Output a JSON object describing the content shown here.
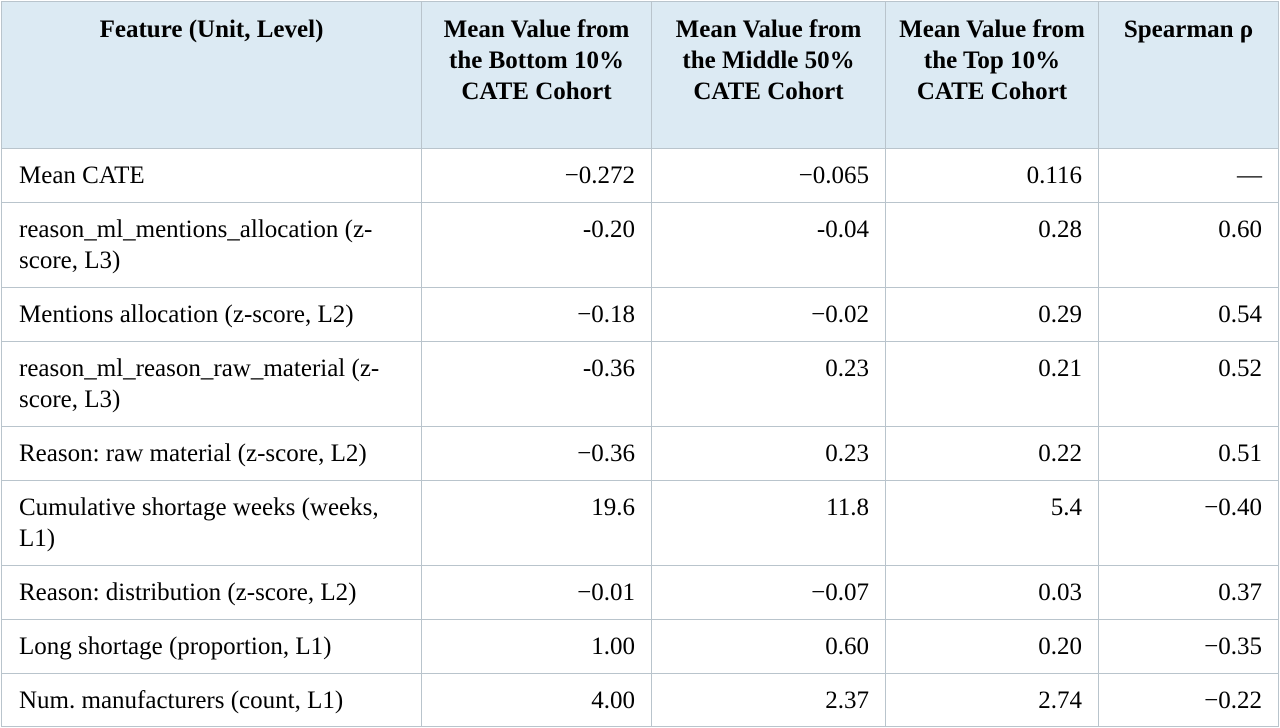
{
  "table": {
    "headers": [
      "Feature (Unit, Level)",
      "Mean Value from the Bottom 10% CATE Cohort",
      "Mean Value from the Middle 50% CATE Cohort",
      "Mean Value from the Top 10% CATE Cohort",
      "Spearman ρ"
    ],
    "rows": [
      [
        "Mean CATE",
        "−0.272",
        "−0.065",
        "0.116",
        "—"
      ],
      [
        "reason_ml_mentions_allocation (z-score, L3)",
        "-0.20",
        "-0.04",
        "0.28",
        "0.60"
      ],
      [
        "Mentions allocation (z-score, L2)",
        "−0.18",
        "−0.02",
        "0.29",
        "0.54"
      ],
      [
        "reason_ml_reason_raw_material (z-score, L3)",
        "-0.36",
        "0.23",
        "0.21",
        "0.52"
      ],
      [
        "Reason: raw material (z-score, L2)",
        "−0.36",
        "0.23",
        "0.22",
        "0.51"
      ],
      [
        "Cumulative shortage weeks (weeks, L1)",
        "19.6",
        "11.8",
        "5.4",
        "−0.40"
      ],
      [
        "Reason: distribution (z-score, L2)",
        "−0.01",
        "−0.07",
        "0.03",
        "0.37"
      ],
      [
        "Long shortage (proportion, L1)",
        "1.00",
        "0.60",
        "0.20",
        "−0.35"
      ],
      [
        "Num. manufacturers (count, L1)",
        "4.00",
        "2.37",
        "2.74",
        "−0.22"
      ]
    ]
  }
}
